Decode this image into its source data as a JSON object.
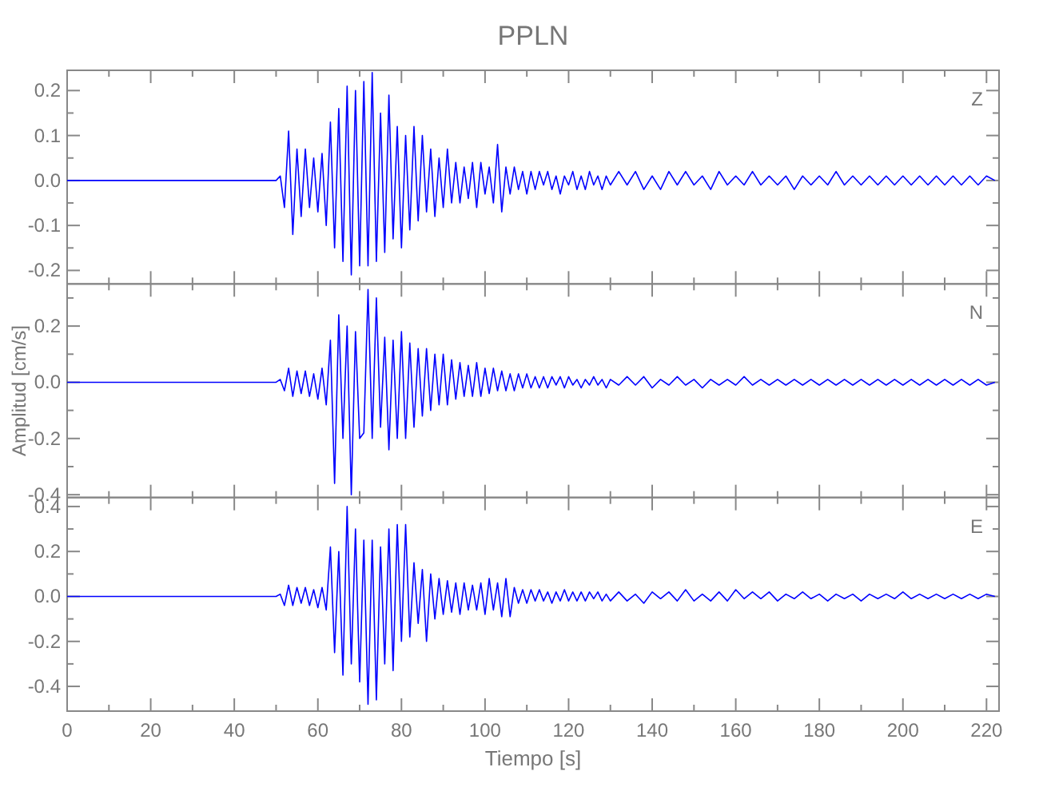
{
  "chart_data": [
    {
      "type": "line",
      "title": "PPLN",
      "annotations": [
        "Z"
      ],
      "color": "#0000ff",
      "tick_labels": "y",
      "x": [
        0,
        25,
        50,
        51,
        52,
        53,
        54,
        55,
        56,
        57,
        58,
        59,
        60,
        61,
        62,
        63,
        64,
        65,
        66,
        67,
        68,
        69,
        70,
        71,
        72,
        73,
        74,
        75,
        76,
        77,
        78,
        79,
        80,
        81,
        82,
        83,
        84,
        85,
        86,
        87,
        88,
        89,
        90,
        91,
        92,
        93,
        94,
        95,
        96,
        97,
        98,
        99,
        100,
        101,
        102,
        103,
        104,
        105,
        106,
        107,
        108,
        109,
        110,
        111,
        112,
        113,
        114,
        115,
        116,
        117,
        118,
        119,
        120,
        121,
        122,
        123,
        124,
        125,
        126,
        127,
        128,
        129,
        130,
        132,
        134,
        136,
        138,
        140,
        142,
        144,
        146,
        148,
        150,
        152,
        154,
        156,
        158,
        160,
        162,
        164,
        166,
        168,
        170,
        172,
        174,
        176,
        178,
        180,
        182,
        184,
        186,
        188,
        190,
        192,
        194,
        196,
        198,
        200,
        202,
        204,
        206,
        208,
        210,
        212,
        214,
        216,
        218,
        220,
        222
      ],
      "values": [
        0,
        0,
        0,
        0.01,
        -0.06,
        0.11,
        -0.12,
        0.07,
        -0.08,
        0.07,
        -0.06,
        0.05,
        -0.07,
        0.06,
        -0.1,
        0.13,
        -0.15,
        0.16,
        -0.18,
        0.21,
        -0.21,
        0.2,
        -0.19,
        0.22,
        -0.19,
        0.24,
        -0.18,
        0.15,
        -0.16,
        0.19,
        -0.13,
        0.12,
        -0.15,
        0.1,
        -0.11,
        0.12,
        -0.09,
        0.1,
        -0.07,
        0.07,
        -0.08,
        0.05,
        -0.06,
        0.07,
        -0.05,
        0.04,
        -0.05,
        0.03,
        -0.04,
        0.04,
        -0.06,
        0.04,
        -0.03,
        0.03,
        -0.05,
        0.08,
        -0.07,
        0.03,
        -0.03,
        0.03,
        -0.02,
        0.02,
        -0.03,
        0.02,
        -0.02,
        0.02,
        -0.01,
        0.02,
        -0.02,
        0.01,
        -0.03,
        0.01,
        -0.01,
        0.02,
        -0.02,
        0.01,
        -0.02,
        0.02,
        -0.01,
        0.01,
        -0.02,
        0.01,
        -0.01,
        0.02,
        -0.01,
        0.02,
        -0.02,
        0.01,
        -0.02,
        0.02,
        -0.01,
        0.02,
        -0.01,
        0.01,
        -0.02,
        0.02,
        -0.01,
        0.01,
        -0.01,
        0.02,
        -0.01,
        0.01,
        -0.01,
        0.01,
        -0.02,
        0.01,
        -0.01,
        0.01,
        -0.01,
        0.02,
        -0.01,
        0.01,
        -0.01,
        0.01,
        -0.01,
        0.01,
        -0.01,
        0.01,
        -0.01,
        0.01,
        -0.01,
        0.01,
        -0.01,
        0.01,
        -0.01,
        0.01,
        -0.01,
        0.01,
        0
      ],
      "xlim": [
        0,
        223
      ],
      "ylim": [
        -0.23,
        0.245
      ],
      "xticks": [
        0,
        {
          "value": 10,
          "label": null
        },
        20,
        {
          "value": 30,
          "label": null
        },
        40,
        {
          "value": 50,
          "label": null
        },
        60,
        {
          "value": 70,
          "label": null
        },
        80,
        {
          "value": 90,
          "label": null
        },
        100,
        {
          "value": 110,
          "label": null
        },
        120,
        {
          "value": 130,
          "label": null
        },
        140,
        {
          "value": 150,
          "label": null
        },
        160,
        {
          "value": 170,
          "label": null
        },
        180,
        {
          "value": 190,
          "label": null
        },
        200,
        {
          "value": 210,
          "label": null
        },
        220
      ],
      "yticks": [
        {
          "value": -0.2,
          "label": "-0.2"
        },
        {
          "value": -0.15,
          "label": null
        },
        {
          "value": -0.1,
          "label": "-0.1"
        },
        {
          "value": -0.05,
          "label": null
        },
        {
          "value": 0,
          "label": "0.0"
        },
        {
          "value": 0.05,
          "label": null
        },
        {
          "value": 0.1,
          "label": "0.1"
        },
        {
          "value": 0.15,
          "label": null
        },
        {
          "value": 0.2,
          "label": "0.2"
        }
      ]
    },
    {
      "type": "line",
      "ylabel": "Amplitud [cm/s]",
      "annotations": [
        "N"
      ],
      "color": "#0000ff",
      "tick_labels": "y",
      "x": [
        0,
        25,
        50,
        51,
        52,
        53,
        54,
        55,
        56,
        57,
        58,
        59,
        60,
        61,
        62,
        63,
        64,
        65,
        66,
        67,
        68,
        69,
        70,
        71,
        72,
        73,
        74,
        75,
        76,
        77,
        78,
        79,
        80,
        81,
        82,
        83,
        84,
        85,
        86,
        87,
        88,
        89,
        90,
        91,
        92,
        93,
        94,
        95,
        96,
        97,
        98,
        99,
        100,
        101,
        102,
        103,
        104,
        105,
        106,
        107,
        108,
        109,
        110,
        111,
        112,
        113,
        114,
        115,
        116,
        117,
        118,
        119,
        120,
        121,
        122,
        123,
        124,
        125,
        126,
        127,
        128,
        129,
        130,
        132,
        134,
        136,
        138,
        140,
        142,
        144,
        146,
        148,
        150,
        152,
        154,
        156,
        158,
        160,
        162,
        164,
        166,
        168,
        170,
        172,
        174,
        176,
        178,
        180,
        182,
        184,
        186,
        188,
        190,
        192,
        194,
        196,
        198,
        200,
        202,
        204,
        206,
        208,
        210,
        212,
        214,
        216,
        218,
        220,
        222
      ],
      "values": [
        0,
        0,
        0,
        0.01,
        -0.03,
        0.05,
        -0.05,
        0.04,
        -0.04,
        0.04,
        -0.05,
        0.03,
        -0.06,
        0.05,
        -0.08,
        0.15,
        -0.36,
        0.24,
        -0.2,
        0.2,
        -0.4,
        0.18,
        -0.2,
        -0.18,
        0.33,
        -0.2,
        0.3,
        -0.16,
        0.16,
        -0.24,
        0.15,
        -0.2,
        0.18,
        -0.2,
        0.14,
        -0.16,
        0.12,
        -0.12,
        0.12,
        -0.1,
        0.1,
        -0.08,
        0.1,
        -0.08,
        0.08,
        -0.06,
        0.07,
        -0.05,
        0.06,
        -0.05,
        0.07,
        -0.05,
        0.05,
        -0.04,
        0.05,
        -0.03,
        0.04,
        -0.03,
        0.03,
        -0.03,
        0.03,
        -0.02,
        0.03,
        -0.02,
        0.02,
        -0.02,
        0.02,
        -0.02,
        0.02,
        -0.01,
        0.02,
        -0.02,
        0.02,
        -0.01,
        0.01,
        -0.02,
        0.01,
        -0.01,
        0.02,
        -0.01,
        0.01,
        -0.02,
        0.01,
        -0.01,
        0.02,
        -0.01,
        0.02,
        -0.02,
        0.01,
        -0.01,
        0.02,
        -0.01,
        0.01,
        -0.02,
        0.01,
        -0.01,
        0.01,
        -0.01,
        0.02,
        -0.01,
        0.01,
        -0.01,
        0.01,
        -0.01,
        0.01,
        -0.01,
        0.01,
        -0.01,
        0.01,
        -0.01,
        0.01,
        -0.01,
        0.01,
        -0.01,
        0.01,
        -0.01,
        0.01,
        -0.01,
        0.01,
        -0.01,
        0.01,
        -0.01,
        0.01,
        -0.01,
        0.01,
        -0.01,
        0.01,
        -0.01,
        0
      ],
      "xlim": [
        0,
        223
      ],
      "ylim": [
        -0.41,
        0.35
      ],
      "xticks": [
        0,
        {
          "value": 10,
          "label": null
        },
        20,
        {
          "value": 30,
          "label": null
        },
        40,
        {
          "value": 50,
          "label": null
        },
        60,
        {
          "value": 70,
          "label": null
        },
        80,
        {
          "value": 90,
          "label": null
        },
        100,
        {
          "value": 110,
          "label": null
        },
        120,
        {
          "value": 130,
          "label": null
        },
        140,
        {
          "value": 150,
          "label": null
        },
        160,
        {
          "value": 170,
          "label": null
        },
        180,
        {
          "value": 190,
          "label": null
        },
        200,
        {
          "value": 210,
          "label": null
        },
        220
      ],
      "yticks": [
        {
          "value": -0.4,
          "label": "-0.4"
        },
        {
          "value": -0.3,
          "label": null
        },
        {
          "value": -0.2,
          "label": "-0.2"
        },
        {
          "value": -0.1,
          "label": null
        },
        {
          "value": 0,
          "label": "0.0"
        },
        {
          "value": 0.1,
          "label": null
        },
        {
          "value": 0.2,
          "label": "0.2"
        },
        {
          "value": 0.3,
          "label": null
        }
      ]
    },
    {
      "type": "line",
      "xlabel": "Tiempo [s]",
      "annotations": [
        "E"
      ],
      "color": "#0000ff",
      "x": [
        0,
        25,
        50,
        51,
        52,
        53,
        54,
        55,
        56,
        57,
        58,
        59,
        60,
        61,
        62,
        63,
        64,
        65,
        66,
        67,
        68,
        69,
        70,
        71,
        72,
        73,
        74,
        75,
        76,
        77,
        78,
        79,
        80,
        81,
        82,
        83,
        84,
        85,
        86,
        87,
        88,
        89,
        90,
        91,
        92,
        93,
        94,
        95,
        96,
        97,
        98,
        99,
        100,
        101,
        102,
        103,
        104,
        105,
        106,
        107,
        108,
        109,
        110,
        111,
        112,
        113,
        114,
        115,
        116,
        117,
        118,
        119,
        120,
        121,
        122,
        123,
        124,
        125,
        126,
        127,
        128,
        129,
        130,
        132,
        134,
        136,
        138,
        140,
        142,
        144,
        146,
        148,
        150,
        152,
        154,
        156,
        158,
        160,
        162,
        164,
        166,
        168,
        170,
        172,
        174,
        176,
        178,
        180,
        182,
        184,
        186,
        188,
        190,
        192,
        194,
        196,
        198,
        200,
        202,
        204,
        206,
        208,
        210,
        212,
        214,
        216,
        218,
        220,
        222
      ],
      "values": [
        0,
        0,
        0,
        0.01,
        -0.04,
        0.05,
        -0.04,
        0.04,
        -0.03,
        0.04,
        -0.04,
        0.03,
        -0.05,
        0.04,
        -0.06,
        0.22,
        -0.25,
        0.2,
        -0.35,
        0.4,
        -0.3,
        0.3,
        -0.38,
        0.25,
        -0.48,
        0.25,
        -0.46,
        0.22,
        -0.3,
        0.3,
        -0.33,
        0.32,
        -0.2,
        0.32,
        -0.18,
        0.15,
        -0.12,
        0.12,
        -0.2,
        0.1,
        -0.1,
        0.08,
        -0.08,
        0.07,
        -0.07,
        0.06,
        -0.08,
        0.06,
        -0.06,
        0.05,
        -0.06,
        0.06,
        -0.08,
        0.08,
        -0.06,
        0.06,
        -0.09,
        0.08,
        -0.09,
        0.04,
        -0.03,
        0.03,
        -0.03,
        0.03,
        -0.02,
        0.03,
        -0.02,
        0.02,
        -0.03,
        0.02,
        -0.02,
        0.03,
        -0.02,
        0.02,
        -0.02,
        0.02,
        -0.02,
        0.02,
        -0.01,
        0.02,
        -0.02,
        0.01,
        -0.02,
        0.02,
        -0.02,
        0.01,
        -0.03,
        0.02,
        -0.01,
        0.02,
        -0.02,
        0.03,
        -0.02,
        0.01,
        -0.02,
        0.02,
        -0.02,
        0.03,
        -0.01,
        0.02,
        -0.01,
        0.02,
        -0.02,
        0.01,
        -0.01,
        0.02,
        -0.01,
        0.01,
        -0.02,
        0.01,
        -0.01,
        0.01,
        -0.02,
        0.01,
        -0.01,
        0.01,
        -0.01,
        0.02,
        -0.01,
        0.01,
        -0.01,
        0.01,
        -0.01,
        0.01,
        -0.01,
        0.01,
        -0.01,
        0.01,
        0
      ],
      "xlim": [
        0,
        223
      ],
      "ylim": [
        -0.51,
        0.44
      ],
      "xticks": [
        0,
        {
          "value": 10,
          "label": null
        },
        20,
        {
          "value": 30,
          "label": null
        },
        40,
        {
          "value": 50,
          "label": null
        },
        60,
        {
          "value": 70,
          "label": null
        },
        80,
        {
          "value": 90,
          "label": null
        },
        100,
        {
          "value": 110,
          "label": null
        },
        120,
        {
          "value": 130,
          "label": null
        },
        140,
        {
          "value": 150,
          "label": null
        },
        160,
        {
          "value": 170,
          "label": null
        },
        180,
        {
          "value": 190,
          "label": null
        },
        200,
        {
          "value": 210,
          "label": null
        },
        220
      ],
      "yticks": [
        {
          "value": -0.4,
          "label": "-0.4"
        },
        {
          "value": -0.3,
          "label": null
        },
        {
          "value": -0.2,
          "label": "-0.2"
        },
        {
          "value": -0.1,
          "label": null
        },
        {
          "value": 0,
          "label": "0.0"
        },
        {
          "value": 0.1,
          "label": null
        },
        {
          "value": 0.2,
          "label": "0.2"
        },
        {
          "value": 0.3,
          "label": null
        },
        {
          "value": 0.4,
          "label": "0.4"
        }
      ]
    }
  ]
}
